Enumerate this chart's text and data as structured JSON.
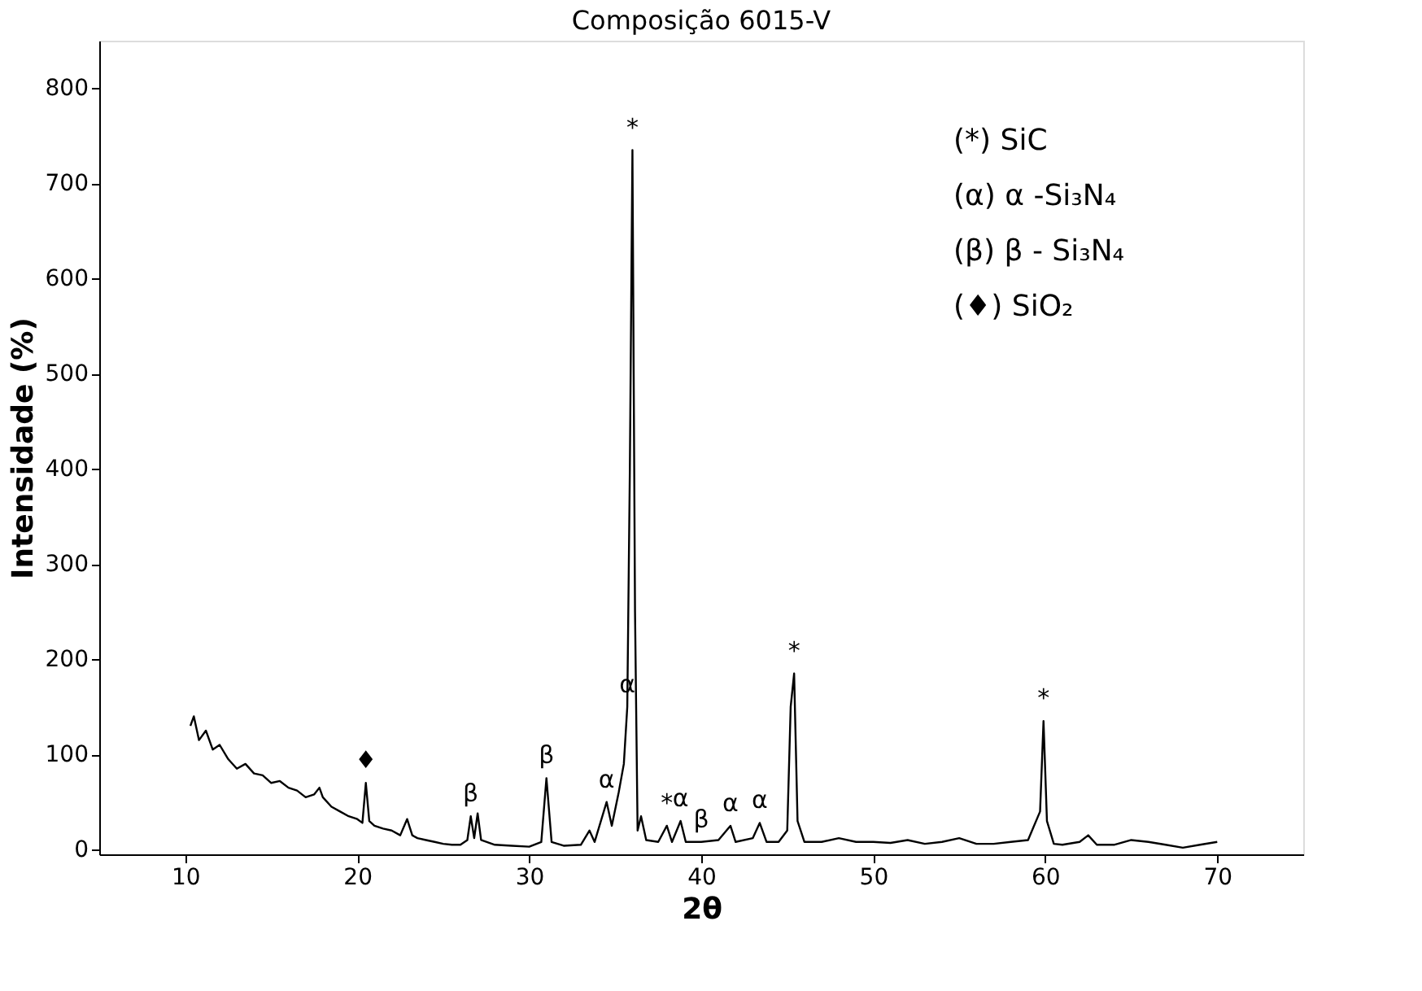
{
  "chart_data": {
    "type": "line",
    "title": "Composição 6015-V",
    "xlabel": "2θ",
    "ylabel": "Intensidade (%)",
    "xlim": [
      5,
      75
    ],
    "xticks": [
      10,
      20,
      30,
      40,
      50,
      60,
      70
    ],
    "ylim": [
      -5,
      850
    ],
    "yticks": [
      0,
      100,
      200,
      300,
      400,
      500,
      600,
      700,
      800
    ],
    "grid": false,
    "marker": "none",
    "line_style": "solid",
    "series": [
      {
        "color": "#000000",
        "x": [
          10.3,
          10.5,
          10.8,
          11.2,
          11.6,
          12,
          12.5,
          13,
          13.5,
          14,
          14.5,
          15,
          15.5,
          16,
          16.5,
          17,
          17.5,
          17.8,
          18,
          18.5,
          19,
          19.5,
          20,
          20.3,
          20.5,
          20.7,
          21,
          21.5,
          22,
          22.5,
          22.9,
          23.2,
          23.5,
          24,
          24.5,
          25,
          25.5,
          26,
          26.4,
          26.6,
          26.8,
          27,
          27.2,
          28,
          29,
          30,
          30.7,
          31,
          31.3,
          32,
          33,
          33.5,
          33.8,
          34.5,
          34.8,
          35.2,
          35.5,
          35.7,
          35.85,
          36,
          36.15,
          36.3,
          36.5,
          36.8,
          37.5,
          38,
          38.3,
          38.8,
          39.1,
          40,
          41,
          41.7,
          42,
          43,
          43.4,
          43.8,
          44.5,
          45,
          45.2,
          45.4,
          45.6,
          46,
          47,
          48,
          49,
          50,
          51,
          52,
          53,
          54,
          55,
          56,
          57,
          58,
          59,
          59.7,
          59.9,
          60.1,
          60.5,
          61,
          62,
          62.5,
          63,
          64,
          65,
          66,
          67,
          68,
          69,
          70
        ],
        "values": [
          130,
          140,
          115,
          125,
          105,
          110,
          95,
          85,
          90,
          80,
          78,
          70,
          72,
          65,
          62,
          55,
          58,
          65,
          55,
          45,
          40,
          35,
          32,
          28,
          70,
          30,
          25,
          22,
          20,
          15,
          32,
          15,
          12,
          10,
          8,
          6,
          5,
          5,
          10,
          35,
          12,
          38,
          10,
          5,
          4,
          3,
          8,
          75,
          8,
          4,
          5,
          20,
          8,
          50,
          25,
          60,
          90,
          150,
          400,
          735,
          250,
          20,
          35,
          10,
          8,
          25,
          8,
          30,
          8,
          8,
          10,
          25,
          8,
          12,
          28,
          8,
          8,
          20,
          150,
          185,
          30,
          8,
          8,
          12,
          8,
          8,
          7,
          10,
          6,
          8,
          12,
          6,
          6,
          8,
          10,
          40,
          135,
          30,
          6,
          5,
          8,
          15,
          5,
          5,
          10,
          8,
          5,
          2,
          5,
          8
        ]
      }
    ],
    "annotations": [
      {
        "text": "*",
        "x": 36,
        "y": 735
      },
      {
        "text": "α",
        "x": 35.7,
        "y": 150
      },
      {
        "text": "*",
        "x": 45.4,
        "y": 185
      },
      {
        "text": "*",
        "x": 59.9,
        "y": 135
      },
      {
        "text": "♦",
        "x": 20.5,
        "y": 70
      },
      {
        "text": "β",
        "x": 26.6,
        "y": 35
      },
      {
        "text": "β",
        "x": 31,
        "y": 75
      },
      {
        "text": "α",
        "x": 34.5,
        "y": 50
      },
      {
        "text": "*",
        "x": 38,
        "y": 25
      },
      {
        "text": "α",
        "x": 38.8,
        "y": 30
      },
      {
        "text": "β",
        "x": 40,
        "y": 8
      },
      {
        "text": "α",
        "x": 41.7,
        "y": 25
      },
      {
        "text": "α",
        "x": 43.4,
        "y": 28
      },
      "(*) SiC",
      "(α) α -Si₃N₄",
      "(β) β - Si₃N₄",
      "(♦) SiO₂"
    ]
  }
}
